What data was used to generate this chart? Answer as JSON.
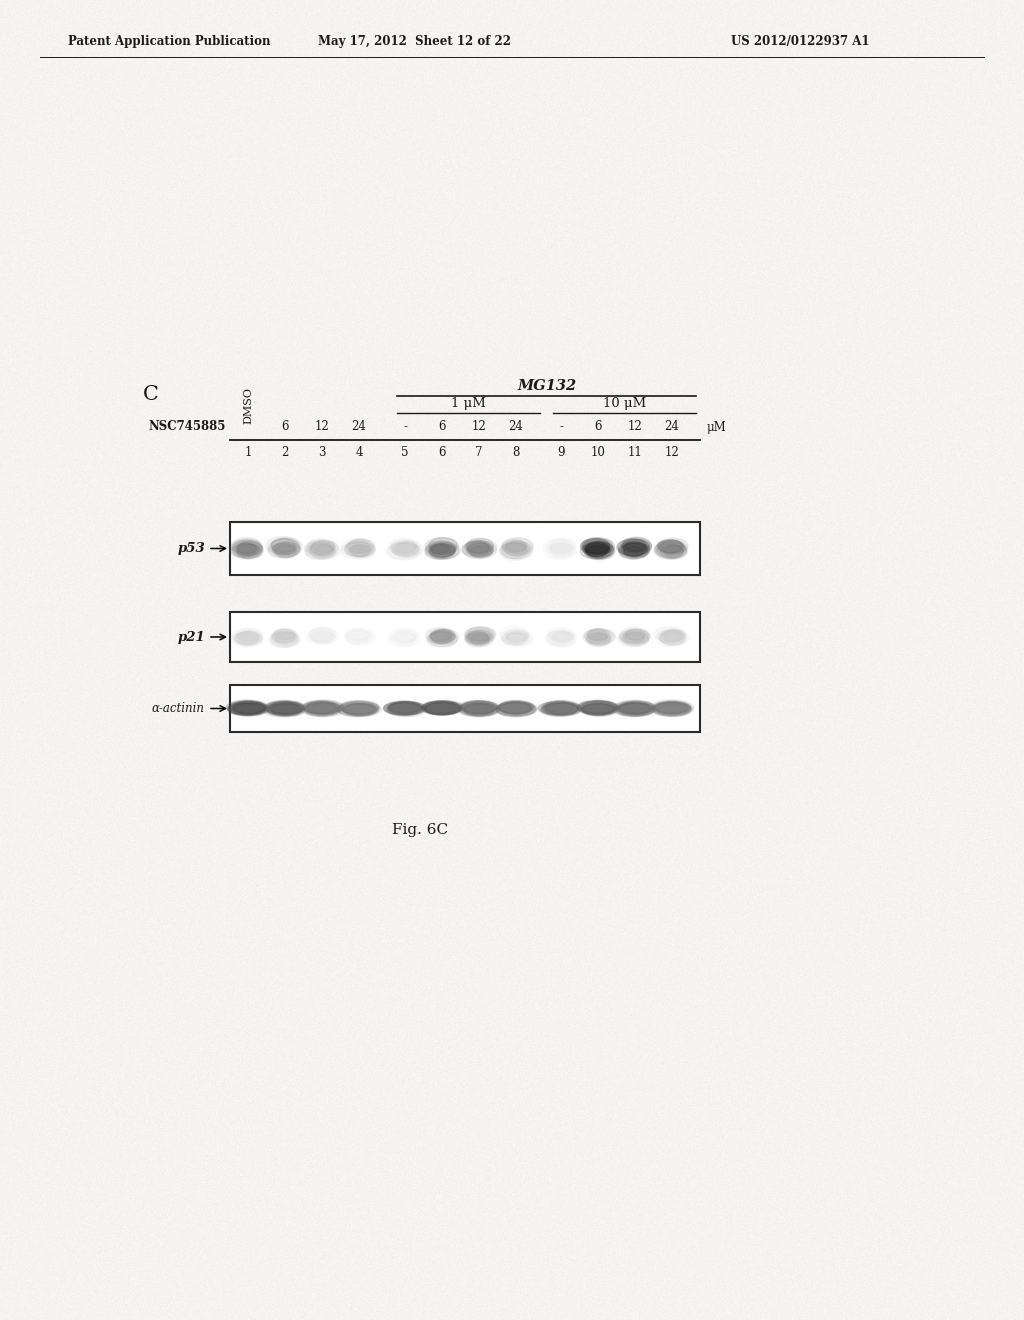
{
  "header_left": "Patent Application Publication",
  "header_mid": "May 17, 2012  Sheet 12 of 22",
  "header_right": "US 2012/0122937 A1",
  "panel_label": "C",
  "mg132_label": "MG132",
  "conc1_label": "1 μM",
  "conc2_label": "10 μM",
  "row_label": "NSC745885",
  "col_headers": [
    "DMSO",
    "6",
    "12",
    "24",
    "-",
    "6",
    "12",
    "24",
    "-",
    "6",
    "12",
    "24",
    "μM"
  ],
  "lane_numbers": [
    "1",
    "2",
    "3",
    "4",
    "5",
    "6",
    "7",
    "8",
    "9",
    "10",
    "11",
    "12"
  ],
  "band_labels": [
    "p53",
    "p21",
    "α-actinin"
  ],
  "fig_label": "Fig. 6C",
  "bg_color": "#f0eeeb",
  "text_color": "#1a1a1a",
  "panel_bg": "#e8e5e0"
}
